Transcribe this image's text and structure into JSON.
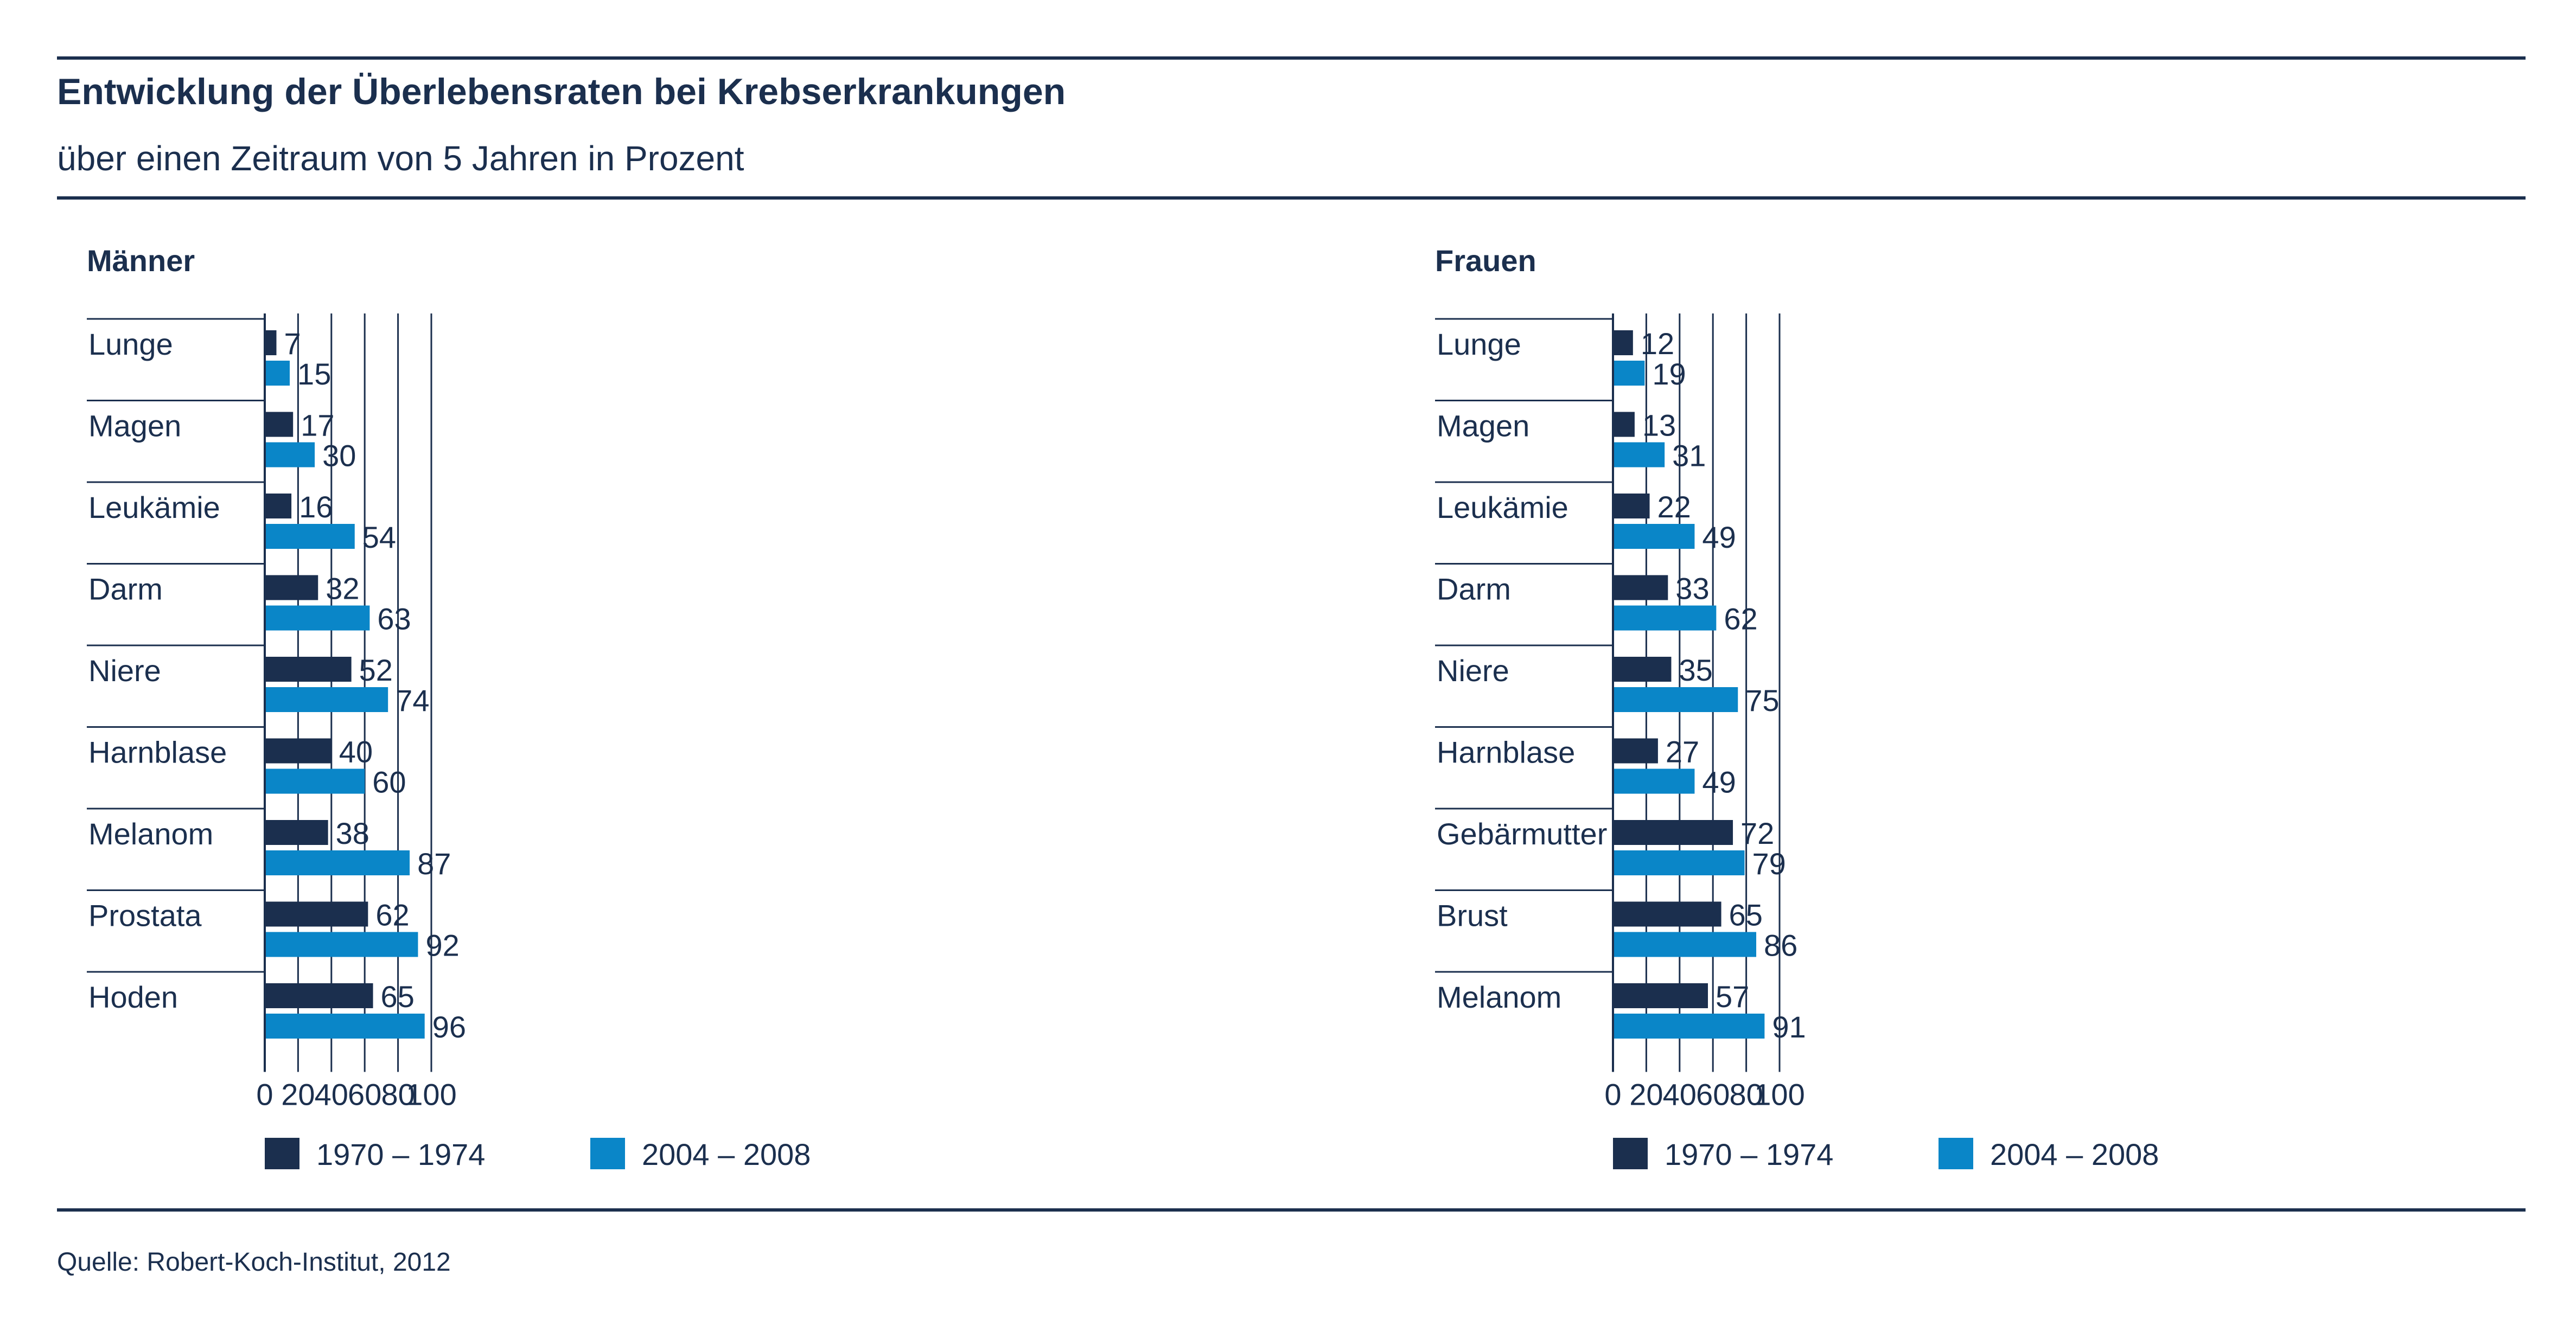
{
  "header": {
    "title": "Entwicklung der Überlebensraten bei Krebserkrankungen",
    "subtitle": "über einen Zeitraum von 5 Jahren in Prozent"
  },
  "footer": {
    "source": "Quelle: Robert-Koch-Institut, 2012"
  },
  "colors": {
    "series_1970": "#1b2f4e",
    "series_2004": "#0a86c8",
    "text": "#1b2f4e",
    "grid": "#1b2f4e"
  },
  "chart_data": [
    {
      "type": "bar",
      "orientation": "horizontal",
      "title": "Männer",
      "categories": [
        "Lunge",
        "Magen",
        "Leukämie",
        "Darm",
        "Niere",
        "Harnblase",
        "Melanom",
        "Prostata",
        "Hoden"
      ],
      "series": [
        {
          "name": "1970 – 1974",
          "values": [
            7,
            17,
            16,
            32,
            52,
            40,
            38,
            62,
            65
          ]
        },
        {
          "name": "2004 – 2008",
          "values": [
            15,
            30,
            54,
            63,
            74,
            60,
            87,
            92,
            96
          ]
        }
      ],
      "xlim": [
        0,
        100
      ],
      "xticks": [
        0,
        20,
        40,
        60,
        80,
        100
      ],
      "grid": true,
      "legend": "bottom"
    },
    {
      "type": "bar",
      "orientation": "horizontal",
      "title": "Frauen",
      "categories": [
        "Lunge",
        "Magen",
        "Leukämie",
        "Darm",
        "Niere",
        "Harnblase",
        "Gebärmutter",
        "Brust",
        "Melanom"
      ],
      "series": [
        {
          "name": "1970 – 1974",
          "values": [
            12,
            13,
            22,
            33,
            35,
            27,
            72,
            65,
            57
          ]
        },
        {
          "name": "2004 – 2008",
          "values": [
            19,
            31,
            49,
            62,
            75,
            49,
            79,
            86,
            91
          ]
        }
      ],
      "xlim": [
        0,
        100
      ],
      "xticks": [
        0,
        20,
        40,
        60,
        80,
        100
      ],
      "grid": true,
      "legend": "bottom"
    }
  ]
}
